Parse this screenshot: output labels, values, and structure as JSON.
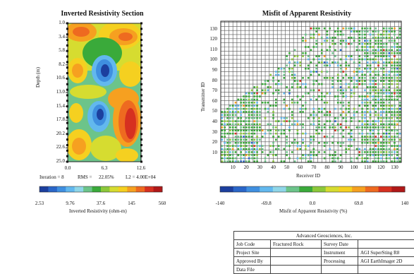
{
  "left_panel": {
    "title": "Inverted Resistivity Section",
    "ylabel": "Depth (m)",
    "yticks": [
      "1.0",
      "3.4",
      "5.8",
      "8.2",
      "10.6",
      "13.0",
      "15.4",
      "17.8",
      "20.2",
      "22.6",
      "25.0"
    ],
    "xticks": [
      "0.0",
      "6.3",
      "12.6"
    ],
    "stats": {
      "iteration": "Iteration = 8",
      "rms_label": "RMS =",
      "rms_value": "22.05%",
      "l2": "L2 = 4.00E+04"
    },
    "colorbar": {
      "ticks": [
        "2.53",
        "9.76",
        "37.6",
        "145",
        "560"
      ],
      "label": "Inverted Resistivity (ohm-m)",
      "colors": [
        "#1c3f9e",
        "#2a66c8",
        "#3f8fe0",
        "#62b8ee",
        "#8fd6e8",
        "#6cc48a",
        "#3aaa3a",
        "#8cc83a",
        "#d6dc30",
        "#f5d020",
        "#f6a020",
        "#ee6a20",
        "#d63020",
        "#b01818"
      ]
    }
  },
  "right_panel": {
    "title": "Misfit of Apparent Resistivity",
    "ylabel": "Transmitter ID",
    "xlabel": "Receiver ID",
    "yticks": [
      "10",
      "20",
      "30",
      "40",
      "50",
      "60",
      "70",
      "80",
      "90",
      "100",
      "110",
      "120",
      "130"
    ],
    "xticks": [
      "10",
      "20",
      "30",
      "40",
      "50",
      "60",
      "70",
      "80",
      "90",
      "100",
      "110",
      "120",
      "130"
    ],
    "colorbar": {
      "ticks": [
        "-140",
        "-69.8",
        "0.0",
        "69.8",
        "140"
      ],
      "label": "Misfit of Apparent Resistivity (%)",
      "colors": [
        "#1c3f9e",
        "#2a66c8",
        "#3f8fe0",
        "#62b8ee",
        "#8fd6e8",
        "#6cc48a",
        "#3aaa3a",
        "#8cc83a",
        "#d6dc30",
        "#f5d020",
        "#f6a020",
        "#ee6a20",
        "#d63020",
        "#b01818"
      ]
    }
  },
  "chart_data": [
    {
      "type": "heatmap",
      "title": "Inverted Resistivity Section",
      "ylabel": "Depth (m)",
      "xlabel": "",
      "xlim": [
        0.0,
        12.6
      ],
      "ylim": [
        25.0,
        1.0
      ],
      "colorbar_label": "Inverted Resistivity (ohm-m)",
      "colorbar_range": [
        2.53,
        560
      ],
      "scale": "log"
    },
    {
      "type": "scatter",
      "title": "Misfit of Apparent Resistivity",
      "xlabel": "Receiver ID",
      "ylabel": "Transmitter ID",
      "xlim": [
        1,
        135
      ],
      "ylim": [
        1,
        138
      ],
      "colorbar_label": "Misfit of Apparent Resistivity (%)",
      "colorbar_range": [
        -140,
        140
      ]
    }
  ],
  "title_block": {
    "company": "Advanced Geosciences, Inc.",
    "rows": [
      [
        "Job Code",
        "Fractured Rock",
        "Survey Date",
        ""
      ],
      [
        "Project Site",
        "",
        "Instrument",
        "AGI SuperSting R8"
      ],
      [
        "Approved By",
        "",
        "Processing",
        "AGI EarthImager 2D"
      ],
      [
        "Data File",
        "",
        "",
        ""
      ]
    ]
  }
}
